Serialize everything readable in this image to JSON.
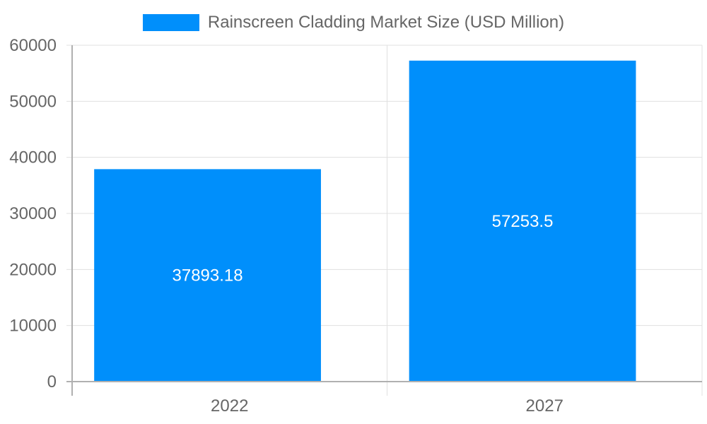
{
  "chart_data": {
    "type": "bar",
    "title": "",
    "categories": [
      "2022",
      "2027"
    ],
    "series": [
      {
        "name": "Rainscreen Cladding Market Size (USD Million)",
        "values": [
          37893.18,
          57253.5
        ],
        "color": "#008ffb"
      }
    ],
    "data_labels": [
      "37893.18",
      "57253.5"
    ],
    "xlabel": "",
    "ylabel": "",
    "ylim": [
      0,
      60000
    ],
    "yticks": [
      "0",
      "10000",
      "20000",
      "30000",
      "40000",
      "50000",
      "60000"
    ],
    "grid": true,
    "legend_position": "top"
  },
  "legend": {
    "label": "Rainscreen Cladding Market Size (USD Million)",
    "color": "#008ffb"
  }
}
